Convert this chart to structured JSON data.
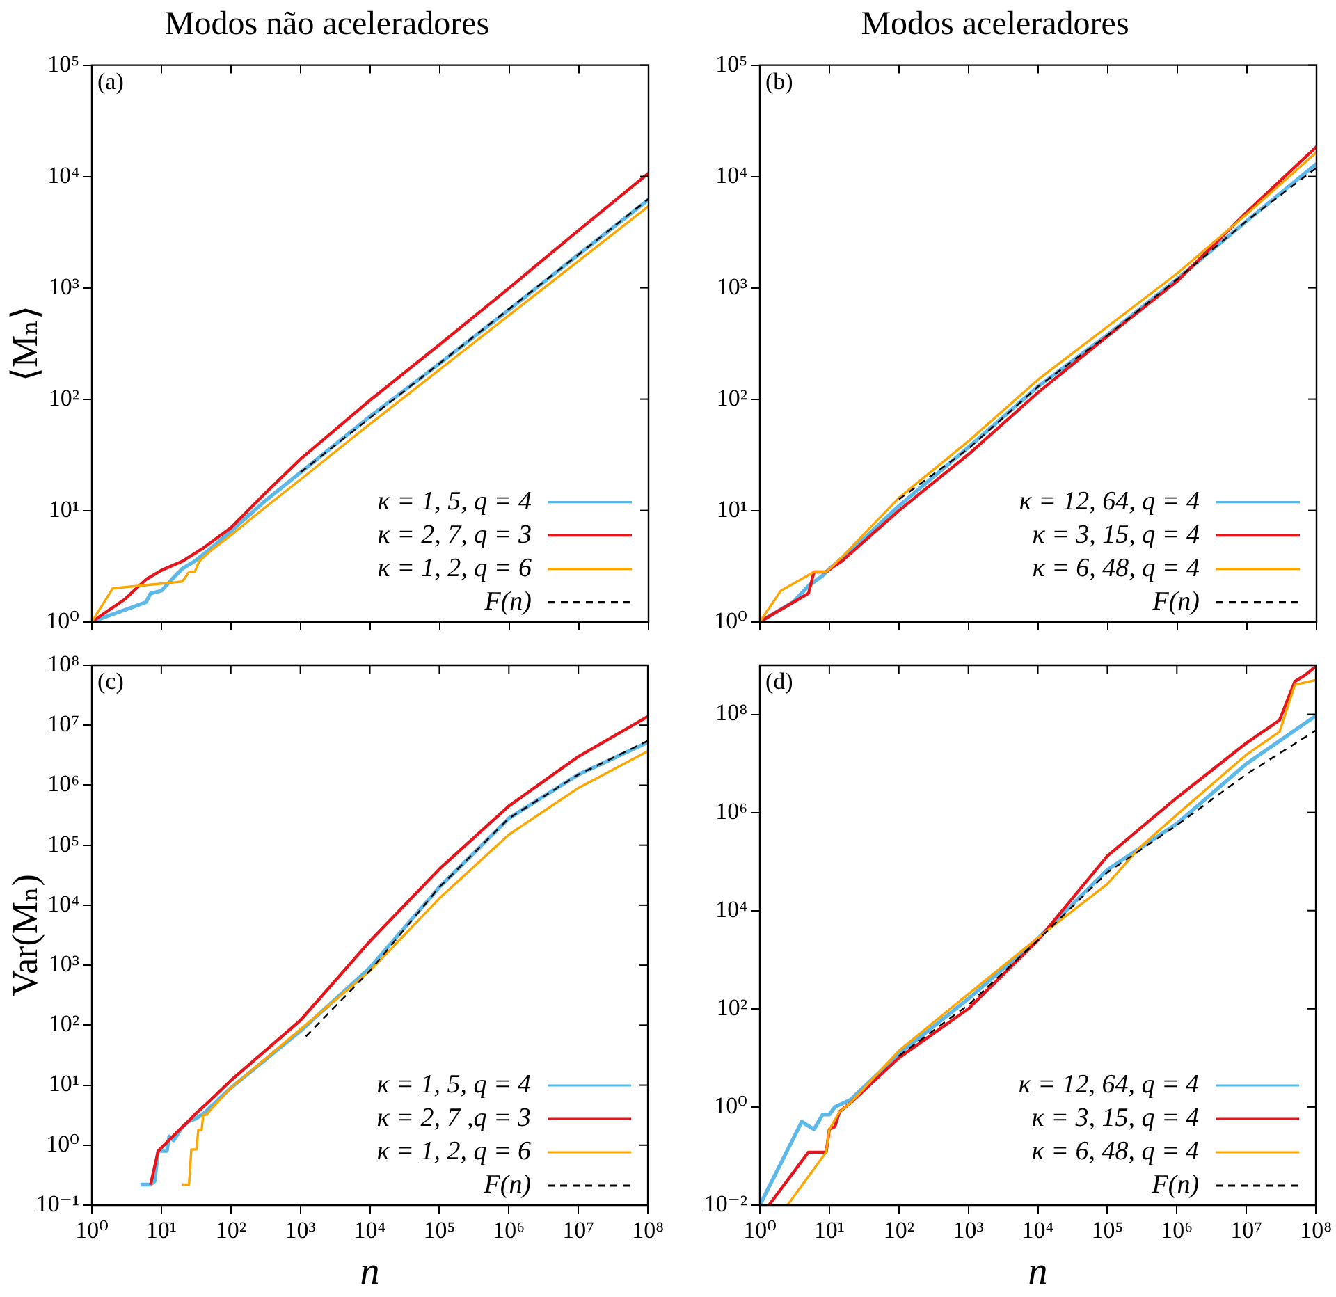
{
  "chart_data": [
    {
      "type": "line",
      "title": "Modos não aceleradores",
      "ylabel": "⟨Mₙ⟩",
      "log": "xy",
      "xlim": [
        1,
        100000000
      ],
      "ylim": [
        1,
        100000
      ],
      "xticks": [
        {
          "value": 1,
          "label": null
        },
        {
          "value": 10,
          "label": null
        },
        {
          "value": 100,
          "label": null
        },
        {
          "value": 1000,
          "label": null
        },
        {
          "value": 10000,
          "label": null
        },
        {
          "value": 100000,
          "label": null
        },
        {
          "value": 1000000,
          "label": null
        },
        {
          "value": 10000000,
          "label": null
        },
        {
          "value": 100000000,
          "label": null
        }
      ],
      "yticks": [
        {
          "value": 1,
          "label": "10⁰"
        },
        {
          "value": 10,
          "label": "10¹"
        },
        {
          "value": 100,
          "label": "10²"
        },
        {
          "value": 1000,
          "label": "10³"
        },
        {
          "value": 10000,
          "label": "10⁴"
        },
        {
          "value": 100000,
          "label": "10⁵"
        }
      ],
      "tick_labels": "y",
      "legend": "bottom right",
      "annotations": [
        "(a)"
      ],
      "series": [
        {
          "name": "κ = 1, 5, q = 4",
          "color": "#5bb8e8",
          "x": [
            1,
            6,
            7,
            10,
            15,
            20,
            30,
            50,
            100,
            300,
            1000,
            10000,
            100000,
            1000000,
            10000000,
            100000000
          ],
          "values": [
            1,
            1.5,
            1.8,
            1.9,
            2.5,
            3.0,
            3.5,
            4.5,
            6.5,
            12,
            22,
            70,
            210,
            640,
            2000,
            6200
          ]
        },
        {
          "name": "κ = 2, 7, q = 3",
          "color": "#e8141c",
          "x": [
            1,
            3,
            6,
            10,
            20,
            40,
            100,
            300,
            1000,
            10000,
            100000,
            1000000,
            10000000,
            100000000
          ],
          "values": [
            1,
            1.6,
            2.4,
            2.9,
            3.5,
            4.6,
            7,
            14,
            29,
            98,
            310,
            1000,
            3300,
            10700
          ]
        },
        {
          "name": "κ = 1, 2, q = 6",
          "color": "#ffa500",
          "x": [
            1,
            2,
            10,
            20,
            25,
            30,
            35,
            50,
            100,
            300,
            1000,
            10000,
            100000,
            1000000,
            10000000,
            100000000
          ],
          "values": [
            1,
            2.0,
            2.2,
            2.3,
            2.8,
            2.8,
            3.5,
            4.3,
            6,
            10.5,
            19,
            60,
            185,
            570,
            1750,
            5400
          ]
        },
        {
          "name": "F(n)",
          "color": "#000000",
          "line_style": "dashed",
          "x": [
            1000,
            10000,
            100000,
            1000000,
            10000000,
            100000000
          ],
          "values": [
            22,
            68,
            210,
            650,
            2000,
            6300
          ]
        }
      ]
    },
    {
      "type": "line",
      "title": "Modos aceleradores",
      "log": "xy",
      "xlim": [
        1,
        100000000
      ],
      "ylim": [
        1,
        100000
      ],
      "xticks": [
        {
          "value": 1,
          "label": null
        },
        {
          "value": 10,
          "label": null
        },
        {
          "value": 100,
          "label": null
        },
        {
          "value": 1000,
          "label": null
        },
        {
          "value": 10000,
          "label": null
        },
        {
          "value": 100000,
          "label": null
        },
        {
          "value": 1000000,
          "label": null
        },
        {
          "value": 10000000,
          "label": null
        },
        {
          "value": 100000000,
          "label": null
        }
      ],
      "yticks": [
        {
          "value": 1,
          "label": "10⁰"
        },
        {
          "value": 10,
          "label": "10¹"
        },
        {
          "value": 100,
          "label": "10²"
        },
        {
          "value": 1000,
          "label": "10³"
        },
        {
          "value": 10000,
          "label": "10⁴"
        },
        {
          "value": 100000,
          "label": "10⁵"
        }
      ],
      "tick_labels": "y",
      "legend": "bottom right",
      "annotations": [
        "(b)"
      ],
      "series": [
        {
          "name": "κ = 12, 64, q = 4",
          "color": "#5bb8e8",
          "x": [
            1,
            3,
            5,
            8,
            10,
            20,
            100,
            1000,
            10000,
            100000,
            1000000,
            10000000,
            100000000
          ],
          "values": [
            1,
            1.5,
            2.1,
            2.6,
            3.0,
            4.3,
            11,
            37,
            130,
            380,
            1200,
            4000,
            13000
          ]
        },
        {
          "name": "κ = 3, 15, q = 4",
          "color": "#e8141c",
          "x": [
            1,
            5,
            6,
            9,
            12,
            15,
            100,
            1000,
            10000,
            100000,
            1000000,
            10000000,
            100000000
          ],
          "values": [
            1,
            1.8,
            2.8,
            2.8,
            3.2,
            3.5,
            10,
            32,
            115,
            370,
            1150,
            4800,
            18500
          ]
        },
        {
          "name": "κ = 6, 48, q = 4",
          "color": "#ffa500",
          "x": [
            1,
            2,
            6,
            9,
            15,
            100,
            1000,
            10000,
            100000,
            1000000,
            10000000,
            100000000
          ],
          "values": [
            1,
            1.9,
            2.8,
            2.8,
            3.8,
            13,
            42,
            150,
            450,
            1350,
            4600,
            16500
          ]
        },
        {
          "name": "F(n)",
          "color": "#000000",
          "line_style": "dashed",
          "x": [
            100,
            1000,
            10000,
            100000,
            1000000,
            10000000,
            100000000
          ],
          "values": [
            12.6,
            36,
            130,
            375,
            1200,
            4000,
            12000
          ]
        }
      ]
    },
    {
      "type": "line",
      "xlabel": "n",
      "ylabel": "Var(Mₙ)",
      "log": "xy",
      "xlim": [
        1,
        100000000
      ],
      "ylim": [
        0.1,
        100000000
      ],
      "xticks": [
        {
          "value": 1,
          "label": "10⁰"
        },
        {
          "value": 10,
          "label": "10¹"
        },
        {
          "value": 100,
          "label": "10²"
        },
        {
          "value": 1000,
          "label": "10³"
        },
        {
          "value": 10000,
          "label": "10⁴"
        },
        {
          "value": 100000,
          "label": "10⁵"
        },
        {
          "value": 1000000,
          "label": "10⁶"
        },
        {
          "value": 10000000,
          "label": "10⁷"
        },
        {
          "value": 100000000,
          "label": "10⁸"
        }
      ],
      "yticks": [
        {
          "value": 0.1,
          "label": "10⁻¹"
        },
        {
          "value": 1,
          "label": "10⁰"
        },
        {
          "value": 10,
          "label": "10¹"
        },
        {
          "value": 100,
          "label": "10²"
        },
        {
          "value": 1000,
          "label": "10³"
        },
        {
          "value": 10000,
          "label": "10⁴"
        },
        {
          "value": 100000,
          "label": "10⁵"
        },
        {
          "value": 1000000,
          "label": "10⁶"
        },
        {
          "value": 10000000,
          "label": "10⁷"
        },
        {
          "value": 100000000,
          "label": "10⁸"
        }
      ],
      "legend": "bottom right",
      "annotations": [
        "(c)"
      ],
      "series": [
        {
          "name": "κ = 1, 5, q = 4",
          "color": "#5bb8e8",
          "x": [
            5,
            7,
            8,
            9,
            12,
            13,
            15,
            20,
            25,
            30,
            40,
            100,
            1000,
            10000,
            100000,
            1000000,
            10000000,
            100000000
          ],
          "values": [
            0.22,
            0.22,
            0.25,
            0.8,
            0.8,
            1.4,
            1.2,
            2,
            2.5,
            2.7,
            3.3,
            9,
            80,
            900,
            20000,
            280000,
            1500000,
            5200000
          ]
        },
        {
          "name": "κ = 2, 7 ,q = 3",
          "color": "#e8141c",
          "x": [
            7,
            9,
            20,
            27,
            30,
            50,
            100,
            1000,
            10000,
            100000,
            1000000,
            10000000,
            100000000
          ],
          "values": [
            0.22,
            0.8,
            2,
            2.8,
            3.2,
            5.5,
            12,
            120,
            2500,
            40000,
            450000,
            3000000,
            14000000
          ]
        },
        {
          "name": "κ = 1, 2, q = 6",
          "color": "#ffa500",
          "x": [
            20,
            25,
            27,
            32,
            34,
            38,
            40,
            45,
            50,
            100,
            1000,
            10000,
            100000,
            1000000,
            10000000,
            100000000
          ],
          "values": [
            0.22,
            0.22,
            0.85,
            0.85,
            1.8,
            1.8,
            3.2,
            3.2,
            3.8,
            9,
            85,
            800,
            13000,
            150000,
            900000,
            3700000
          ]
        },
        {
          "name": "F(n)",
          "color": "#000000",
          "line_style": "dashed",
          "x": [
            1200,
            10000,
            100000,
            1000000,
            10000000,
            100000000
          ],
          "values": [
            65,
            800,
            20000,
            280000,
            1500000,
            5500000
          ]
        }
      ]
    },
    {
      "type": "line",
      "xlabel": "n",
      "log": "xy",
      "xlim": [
        1,
        100000000
      ],
      "ylim": [
        0.01,
        1000000000
      ],
      "xticks": [
        {
          "value": 1,
          "label": "10⁰"
        },
        {
          "value": 10,
          "label": "10¹"
        },
        {
          "value": 100,
          "label": "10²"
        },
        {
          "value": 1000,
          "label": "10³"
        },
        {
          "value": 10000,
          "label": "10⁴"
        },
        {
          "value": 100000,
          "label": "10⁵"
        },
        {
          "value": 1000000,
          "label": "10⁶"
        },
        {
          "value": 10000000,
          "label": "10⁷"
        },
        {
          "value": 100000000,
          "label": "10⁸"
        }
      ],
      "yticks": [
        {
          "value": 0.01,
          "label": "10⁻²"
        },
        {
          "value": 1,
          "label": "10⁰"
        },
        {
          "value": 100,
          "label": "10²"
        },
        {
          "value": 10000,
          "label": "10⁴"
        },
        {
          "value": 1000000,
          "label": "10⁶"
        },
        {
          "value": 100000000,
          "label": "10⁸"
        }
      ],
      "legend": "bottom right",
      "annotations": [
        "(d)"
      ],
      "series": [
        {
          "name": "κ = 12, 64, q = 4",
          "color": "#5bb8e8",
          "x": [
            1,
            4,
            6,
            8,
            10,
            12,
            20,
            100,
            1000,
            10000,
            100000,
            1000000,
            10000000,
            100000000
          ],
          "values": [
            0.01,
            0.5,
            0.35,
            0.7,
            0.7,
            1,
            1.4,
            12,
            160,
            2700,
            68000,
            590000,
            9800000,
            93000000
          ]
        },
        {
          "name": "κ = 3, 15, q = 4",
          "color": "#e8141c",
          "x": [
            1.35,
            5,
            9,
            10,
            12,
            14,
            20,
            100,
            1000,
            10000,
            100000,
            1000000,
            10000000,
            30000000,
            50000000,
            70000000,
            100000000
          ],
          "values": [
            0.01,
            0.12,
            0.12,
            0.35,
            0.4,
            0.8,
            1.2,
            10,
            100,
            2500,
            130000,
            2000000,
            26000000,
            76000000,
            470000000,
            630000000,
            950000000
          ]
        },
        {
          "name": "κ = 6, 48, q = 4",
          "color": "#ffa500",
          "x": [
            2.5,
            9,
            10,
            14,
            20,
            100,
            1000,
            10000,
            100000,
            300000,
            1000000,
            10000000,
            30000000,
            50000000,
            100000000
          ],
          "values": [
            0.01,
            0.12,
            0.35,
            0.8,
            1.2,
            14,
            200,
            2800,
            35000,
            200000,
            900000,
            15000000,
            44000000,
            400000000,
            500000000
          ]
        },
        {
          "name": "F(n)",
          "color": "#000000",
          "line_style": "dashed",
          "x": [
            100,
            1000,
            10000,
            100000,
            1000000,
            10000000,
            100000000
          ],
          "values": [
            11,
            120,
            2500,
            60000,
            550000,
            6000000,
            47000000
          ]
        }
      ]
    }
  ]
}
